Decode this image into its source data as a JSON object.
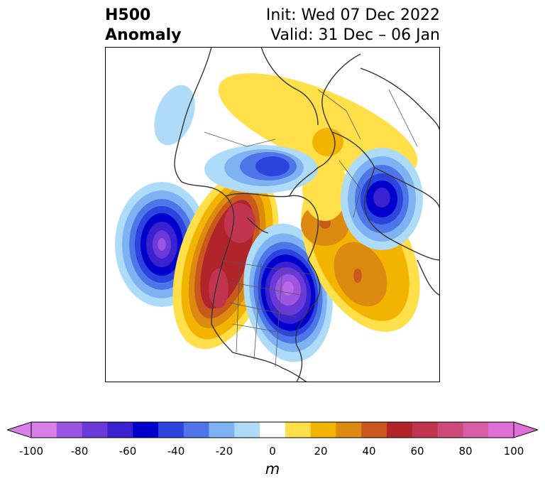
{
  "title": {
    "variable_line1": "H500",
    "variable_line2": "Anomaly",
    "init": "Init: Wed 07 Dec 2022",
    "valid": "Valid: 31 Dec – 06 Jan"
  },
  "map": {
    "region": "North America / Northern Hemisphere polar stereographic",
    "anomaly_features": [
      {
        "sign": "negative",
        "location": "Gulf of Alaska / NE Pacific",
        "peak_m": -90
      },
      {
        "sign": "negative",
        "location": "Great Lakes / eastern US",
        "peak_m": -100
      },
      {
        "sign": "negative",
        "location": "Scandinavia / northern Europe",
        "peak_m": -70
      },
      {
        "sign": "negative",
        "location": "Arctic Ocean / Siberian side",
        "peak_m": -50
      },
      {
        "sign": "negative",
        "location": "Bering Sea",
        "peak_m": -20
      },
      {
        "sign": "positive",
        "location": "Western Canada / US West",
        "peak_m": 70
      },
      {
        "sign": "positive",
        "location": "Greenland / North Atlantic",
        "peak_m": 40
      },
      {
        "sign": "positive",
        "location": "Central Atlantic",
        "peak_m": 40
      },
      {
        "sign": "positive",
        "location": "Siberia / Arctic",
        "peak_m": 20
      }
    ]
  },
  "colorbar": {
    "unit": "m",
    "ticks": [
      "-100",
      "-80",
      "-60",
      "-40",
      "-20",
      "0",
      "20",
      "40",
      "60",
      "80",
      "100"
    ],
    "levels": [
      -100,
      -90,
      -80,
      -70,
      -60,
      -50,
      -40,
      -30,
      -20,
      -10,
      10,
      20,
      30,
      40,
      50,
      60,
      70,
      80,
      90,
      100
    ],
    "colors": [
      "#d980e8",
      "#9b55e0",
      "#6a3ad8",
      "#3a22d0",
      "#0000cc",
      "#2a44dd",
      "#4f76e8",
      "#7fb2f2",
      "#aedcf8",
      "#ffffff",
      "#ffdf4a",
      "#f2b400",
      "#dd8a10",
      "#c8581c",
      "#b0242a",
      "#c03450",
      "#cc4a78",
      "#d65ea6",
      "#e070d6"
    ],
    "extend_low_color": "#d980e8",
    "extend_high_color": "#e070d6"
  }
}
